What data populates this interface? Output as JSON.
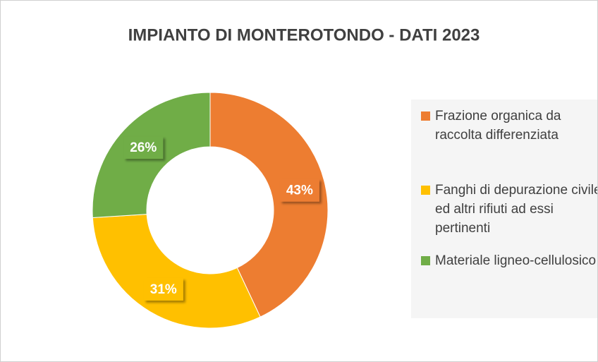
{
  "chart_data": {
    "type": "donut",
    "title": "IMPIANTO DI MONTEROTONDO - DATI 2023",
    "categories": [
      "Frazione organica da raccolta differenziata",
      "Fanghi di depurazione civile ed altri rifiuti ad essi pertinenti",
      "Materiale ligneo-cellulosico"
    ],
    "values": [
      43,
      31,
      26
    ],
    "value_labels": [
      "43%",
      "31%",
      "26%"
    ],
    "colors": [
      "#ed7d31",
      "#ffc000",
      "#70ad47"
    ],
    "legend": "right"
  }
}
